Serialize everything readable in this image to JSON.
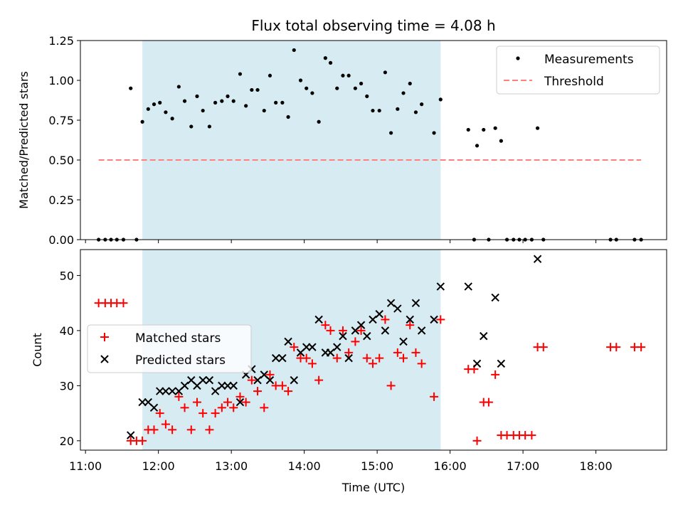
{
  "title": "Flux total observing time = 4.08 h",
  "xlabel": "Time (UTC)",
  "x_ticks": [
    "11:00",
    "12:00",
    "13:00",
    "14:00",
    "15:00",
    "16:00",
    "17:00",
    "18:00"
  ],
  "x_tick_values": [
    11,
    12,
    13,
    14,
    15,
    16,
    17,
    18
  ],
  "xlim": [
    10.93,
    18.97
  ],
  "shaded_region": {
    "x": [
      11.78,
      15.87
    ],
    "color": "#add8e6"
  },
  "chart_data": [
    {
      "type": "scatter",
      "ylabel": "Matched/Predicted stars",
      "ylim": [
        0,
        1.25
      ],
      "yticks": [
        0.0,
        0.25,
        0.5,
        0.75,
        1.0,
        1.25
      ],
      "ytick_labels": [
        "0.00",
        "0.25",
        "0.50",
        "0.75",
        "1.00",
        "1.25"
      ],
      "legend_position": "upper-right",
      "series": [
        {
          "name": "Measurements",
          "marker": "dot",
          "color": "#000000",
          "x": [
            11.18,
            11.27,
            11.35,
            11.43,
            11.52,
            11.62,
            11.7,
            11.78,
            11.86,
            11.94,
            12.02,
            12.1,
            12.19,
            12.28,
            12.36,
            12.45,
            12.53,
            12.61,
            12.7,
            12.78,
            12.87,
            12.95,
            13.03,
            13.12,
            13.2,
            13.28,
            13.36,
            13.45,
            13.53,
            13.61,
            13.7,
            13.78,
            13.86,
            13.95,
            14.03,
            14.11,
            14.2,
            14.29,
            14.36,
            14.45,
            14.53,
            14.61,
            14.7,
            14.78,
            14.86,
            14.94,
            15.03,
            15.11,
            15.19,
            15.28,
            15.36,
            15.45,
            15.53,
            15.61,
            15.78,
            15.87,
            16.25,
            16.33,
            16.37,
            16.46,
            16.53,
            16.62,
            16.7,
            16.78,
            16.87,
            16.95,
            17.03,
            17.12,
            17.2,
            17.28,
            18.2,
            18.28,
            18.53,
            18.62
          ],
          "y": [
            0,
            0,
            0,
            0,
            0,
            0.95,
            0,
            0.74,
            0.82,
            0.85,
            0.86,
            0.8,
            0.76,
            0.96,
            0.87,
            0.71,
            0.9,
            0.81,
            0.71,
            0.86,
            0.87,
            0.9,
            0.87,
            1.04,
            0.84,
            0.94,
            0.94,
            0.81,
            1.03,
            0.86,
            0.86,
            0.77,
            1.19,
            1.0,
            0.95,
            0.92,
            0.74,
            1.14,
            1.11,
            0.95,
            1.03,
            1.03,
            0.95,
            0.98,
            0.9,
            0.81,
            0.81,
            1.05,
            0.67,
            0.82,
            0.92,
            0.98,
            0.8,
            0.85,
            0.67,
            0.88,
            0.69,
            0,
            0.59,
            0.69,
            0,
            0.7,
            0.62,
            0,
            0,
            0,
            0,
            0,
            0.7,
            0,
            0,
            0,
            0,
            0
          ]
        },
        {
          "name": "Threshold",
          "type": "line",
          "style": "dashed",
          "color": "#ff7f7f",
          "x": [
            11.18,
            18.62
          ],
          "y": [
            0.5,
            0.5
          ]
        }
      ]
    },
    {
      "type": "scatter",
      "ylabel": "Count",
      "ylim": [
        18.3,
        54.7
      ],
      "yticks": [
        20,
        30,
        40,
        50
      ],
      "ytick_labels": [
        "20",
        "30",
        "40",
        "50"
      ],
      "legend_position": "center-left",
      "series": [
        {
          "name": "Matched stars",
          "marker": "plus",
          "color": "#ff0000",
          "x": [
            11.18,
            11.27,
            11.35,
            11.43,
            11.52,
            11.62,
            11.7,
            11.78,
            11.86,
            11.94,
            12.02,
            12.1,
            12.19,
            12.28,
            12.36,
            12.45,
            12.53,
            12.61,
            12.7,
            12.78,
            12.87,
            12.95,
            13.03,
            13.12,
            13.2,
            13.28,
            13.36,
            13.45,
            13.53,
            13.61,
            13.7,
            13.78,
            13.86,
            13.95,
            14.03,
            14.11,
            14.2,
            14.29,
            14.36,
            14.45,
            14.53,
            14.61,
            14.7,
            14.78,
            14.86,
            14.94,
            15.03,
            15.11,
            15.19,
            15.28,
            15.36,
            15.45,
            15.53,
            15.61,
            15.78,
            15.87,
            16.25,
            16.33,
            16.37,
            16.46,
            16.53,
            16.62,
            16.7,
            16.78,
            16.87,
            16.95,
            17.03,
            17.12,
            17.2,
            17.28,
            18.2,
            18.28,
            18.53,
            18.62
          ],
          "y": [
            45,
            45,
            45,
            45,
            45,
            20,
            20,
            20,
            22,
            22,
            25,
            23,
            22,
            28,
            26,
            22,
            27,
            25,
            22,
            25,
            26,
            27,
            26,
            28,
            27,
            31,
            29,
            26,
            32,
            30,
            30,
            29,
            37,
            35,
            35,
            34,
            31,
            41,
            40,
            35,
            40,
            36,
            38,
            40,
            35,
            34,
            35,
            42,
            30,
            36,
            35,
            41,
            36,
            34,
            28,
            42,
            33,
            33,
            20,
            27,
            27,
            32,
            21,
            21,
            21,
            21,
            21,
            21,
            37,
            37,
            37,
            37,
            37,
            37
          ]
        },
        {
          "name": "Predicted stars",
          "marker": "x",
          "color": "#000000",
          "x": [
            11.62,
            11.78,
            11.86,
            11.94,
            12.02,
            12.1,
            12.19,
            12.28,
            12.36,
            12.45,
            12.53,
            12.61,
            12.7,
            12.78,
            12.87,
            12.95,
            13.03,
            13.12,
            13.2,
            13.28,
            13.36,
            13.45,
            13.53,
            13.61,
            13.7,
            13.78,
            13.86,
            13.95,
            14.03,
            14.11,
            14.2,
            14.29,
            14.36,
            14.45,
            14.53,
            14.61,
            14.7,
            14.78,
            14.86,
            14.94,
            15.03,
            15.11,
            15.19,
            15.28,
            15.36,
            15.45,
            15.53,
            15.61,
            15.78,
            15.87,
            16.25,
            16.37,
            16.46,
            16.62,
            16.7,
            17.2
          ],
          "y": [
            21,
            27,
            27,
            26,
            29,
            29,
            29,
            29,
            30,
            31,
            30,
            31,
            31,
            29,
            30,
            30,
            30,
            27,
            32,
            33,
            31,
            32,
            31,
            35,
            35,
            38,
            31,
            36,
            37,
            37,
            42,
            36,
            36,
            37,
            39,
            35,
            40,
            41,
            39,
            42,
            43,
            40,
            45,
            44,
            38,
            42,
            45,
            40,
            42,
            48,
            48,
            34,
            39,
            46,
            34,
            53
          ]
        }
      ]
    }
  ]
}
